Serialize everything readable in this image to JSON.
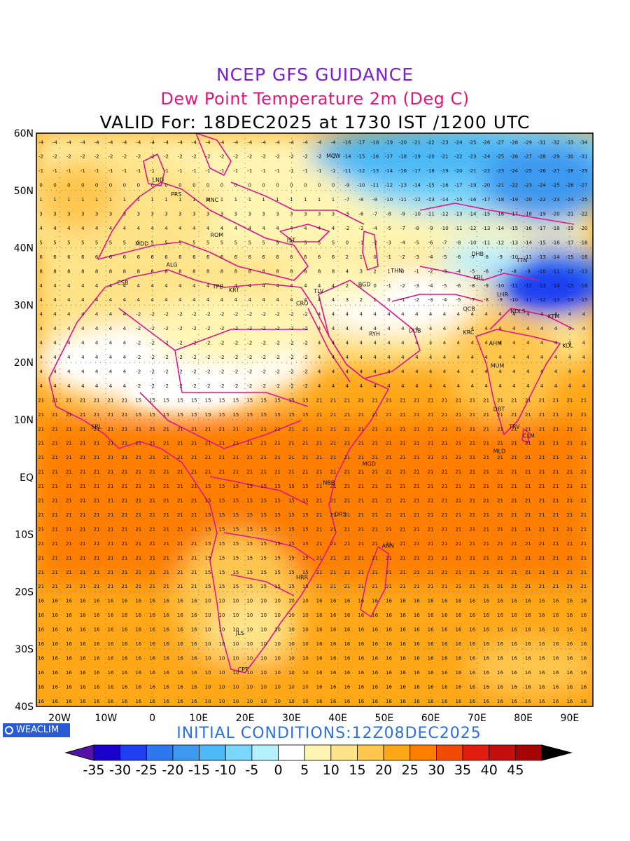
{
  "titles": {
    "line1": "NCEP GFS GUIDANCE",
    "line2": "Dew Point Temperature 2m (Deg C)",
    "line3": "VALID For: 18DEC2025 at 1730 IST /1200 UTC"
  },
  "footer": {
    "logo_text": "WEACLIM",
    "initial_conditions": "INITIAL CONDITIONS:12Z08DEC2025"
  },
  "map": {
    "lon_range": [
      -25,
      95
    ],
    "lat_range": [
      -40,
      60
    ],
    "lat_labels": [
      {
        "lat": 60,
        "text": "60N"
      },
      {
        "lat": 50,
        "text": "50N"
      },
      {
        "lat": 40,
        "text": "40N"
      },
      {
        "lat": 30,
        "text": "30N"
      },
      {
        "lat": 20,
        "text": "20N"
      },
      {
        "lat": 10,
        "text": "10N"
      },
      {
        "lat": 0,
        "text": "EQ"
      },
      {
        "lat": -10,
        "text": "10S"
      },
      {
        "lat": -20,
        "text": "20S"
      },
      {
        "lat": -30,
        "text": "30S"
      },
      {
        "lat": -40,
        "text": "40S"
      }
    ],
    "lon_labels": [
      {
        "lon": -20,
        "text": "20W"
      },
      {
        "lon": -10,
        "text": "10W"
      },
      {
        "lon": 0,
        "text": "0"
      },
      {
        "lon": 10,
        "text": "10E"
      },
      {
        "lon": 20,
        "text": "20E"
      },
      {
        "lon": 30,
        "text": "30E"
      },
      {
        "lon": 40,
        "text": "40E"
      },
      {
        "lon": 50,
        "text": "50E"
      },
      {
        "lon": 60,
        "text": "60E"
      },
      {
        "lon": 70,
        "text": "70E"
      },
      {
        "lon": 80,
        "text": "80E"
      },
      {
        "lon": 90,
        "text": "90E"
      }
    ],
    "stations": [
      {
        "code": "LND",
        "lon": 0,
        "lat": 51.5
      },
      {
        "code": "PRS",
        "lon": 4,
        "lat": 49
      },
      {
        "code": "MNC",
        "lon": 11.5,
        "lat": 48
      },
      {
        "code": "MCW",
        "lon": 37.5,
        "lat": 55.7
      },
      {
        "code": "ROM",
        "lon": 12.5,
        "lat": 41.9
      },
      {
        "code": "MDD",
        "lon": -3.7,
        "lat": 40.4
      },
      {
        "code": "IST",
        "lon": 29,
        "lat": 41
      },
      {
        "code": "ALG",
        "lon": 3,
        "lat": 36.7
      },
      {
        "code": "CSB",
        "lon": -7.6,
        "lat": 33.6
      },
      {
        "code": "TPL",
        "lon": 13,
        "lat": 32.9
      },
      {
        "code": "KRT",
        "lon": 16.5,
        "lat": 32.3
      },
      {
        "code": "CRO",
        "lon": 31,
        "lat": 30
      },
      {
        "code": "TLV",
        "lon": 34.8,
        "lat": 32.1
      },
      {
        "code": "BGD",
        "lon": 44.4,
        "lat": 33.3
      },
      {
        "code": "THN",
        "lon": 51.4,
        "lat": 35.7
      },
      {
        "code": "DHB",
        "lon": 68.8,
        "lat": 38.6
      },
      {
        "code": "TTN",
        "lon": 78.5,
        "lat": 37.5
      },
      {
        "code": "KBL",
        "lon": 69.2,
        "lat": 34.5
      },
      {
        "code": "LHR",
        "lon": 74.3,
        "lat": 31.5
      },
      {
        "code": "NDLS",
        "lon": 77.2,
        "lat": 28.6
      },
      {
        "code": "KTM",
        "lon": 85.3,
        "lat": 27.7
      },
      {
        "code": "QCB",
        "lon": 67,
        "lat": 29
      },
      {
        "code": "RYH",
        "lon": 46.7,
        "lat": 24.7
      },
      {
        "code": "DUB",
        "lon": 55.3,
        "lat": 25.2
      },
      {
        "code": "KRC",
        "lon": 67,
        "lat": 24.9
      },
      {
        "code": "AHM",
        "lon": 72.6,
        "lat": 23
      },
      {
        "code": "KOL",
        "lon": 88.4,
        "lat": 22.6
      },
      {
        "code": "MUM",
        "lon": 72.9,
        "lat": 19.1
      },
      {
        "code": "DBT",
        "lon": 73.5,
        "lat": 11.5
      },
      {
        "code": "SRL",
        "lon": -13.2,
        "lat": 8.5
      },
      {
        "code": "TRV",
        "lon": 76.9,
        "lat": 8.5
      },
      {
        "code": "CLM",
        "lon": 79.9,
        "lat": 6.9
      },
      {
        "code": "MLD",
        "lon": 73.5,
        "lat": 4.2
      },
      {
        "code": "MGD",
        "lon": 45.3,
        "lat": 2
      },
      {
        "code": "NBB",
        "lon": 36.8,
        "lat": -1.3
      },
      {
        "code": "DRS",
        "lon": 39.3,
        "lat": -6.8
      },
      {
        "code": "ANN",
        "lon": 49.5,
        "lat": -12.3
      },
      {
        "code": "HRR",
        "lon": 31,
        "lat": -17.8
      },
      {
        "code": "JLS",
        "lon": 18,
        "lat": -27.5
      },
      {
        "code": "CPT",
        "lon": 18.4,
        "lat": -33.9
      }
    ]
  },
  "colorbar": {
    "labels": [
      "-35",
      "-30",
      "-25",
      "-20",
      "-15",
      "-10",
      "-5",
      "0",
      "5",
      "10",
      "15",
      "20",
      "25",
      "30",
      "35",
      "40",
      "45"
    ],
    "colors": [
      "#1a00c8",
      "#1f3ff0",
      "#2f77ee",
      "#3d99ef",
      "#4cb8f5",
      "#7ad6fb",
      "#b5f0ff",
      "#ffffff",
      "#fff5b3",
      "#ffe389",
      "#ffc64d",
      "#ffa718",
      "#ff7e00",
      "#f24b06",
      "#e01d0e",
      "#c40f0f",
      "#a50505"
    ],
    "under_color": "#5512a8",
    "over_color": "#000000"
  }
}
